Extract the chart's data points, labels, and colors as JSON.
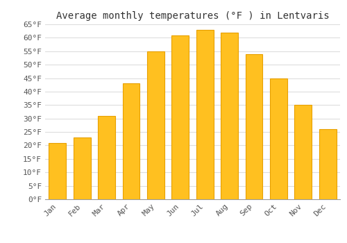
{
  "title": "Average monthly temperatures (°F ) in Lentvaris",
  "months": [
    "Jan",
    "Feb",
    "Mar",
    "Apr",
    "May",
    "Jun",
    "Jul",
    "Aug",
    "Sep",
    "Oct",
    "Nov",
    "Dec"
  ],
  "values": [
    21,
    23,
    31,
    43,
    55,
    61,
    63,
    62,
    54,
    45,
    35,
    26
  ],
  "bar_color": "#FFC020",
  "bar_edge_color": "#E8A000",
  "background_color": "#FFFFFF",
  "grid_color": "#DDDDDD",
  "ylim": [
    0,
    65
  ],
  "yticks": [
    0,
    5,
    10,
    15,
    20,
    25,
    30,
    35,
    40,
    45,
    50,
    55,
    60,
    65
  ],
  "title_fontsize": 10,
  "tick_fontsize": 8,
  "font_family": "monospace"
}
